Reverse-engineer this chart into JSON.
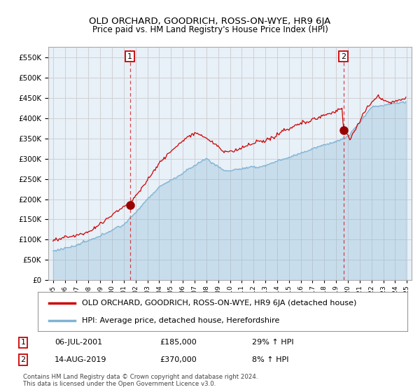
{
  "title": "OLD ORCHARD, GOODRICH, ROSS-ON-WYE, HR9 6JA",
  "subtitle": "Price paid vs. HM Land Registry's House Price Index (HPI)",
  "legend_line1": "OLD ORCHARD, GOODRICH, ROSS-ON-WYE, HR9 6JA (detached house)",
  "legend_line2": "HPI: Average price, detached house, Herefordshire",
  "annotation1_date": "06-JUL-2001",
  "annotation1_price": "£185,000",
  "annotation1_hpi": "29% ↑ HPI",
  "annotation2_date": "14-AUG-2019",
  "annotation2_price": "£370,000",
  "annotation2_hpi": "8% ↑ HPI",
  "footnote": "Contains HM Land Registry data © Crown copyright and database right 2024.\nThis data is licensed under the Open Government Licence v3.0.",
  "ylim": [
    0,
    575000
  ],
  "yticks": [
    0,
    50000,
    100000,
    150000,
    200000,
    250000,
    300000,
    350000,
    400000,
    450000,
    500000,
    550000
  ],
  "sale1_year": 2001.52,
  "sale1_price": 185000,
  "sale2_year": 2019.62,
  "sale2_price": 370000,
  "line_color_red": "#cc0000",
  "line_color_blue": "#7fb3d3",
  "fill_color_blue": "#ddeeff",
  "dot_color_red": "#990000",
  "vline_color": "#cc0000",
  "background_color": "#ffffff",
  "grid_color": "#cccccc",
  "plot_bg_color": "#e8f0f8"
}
